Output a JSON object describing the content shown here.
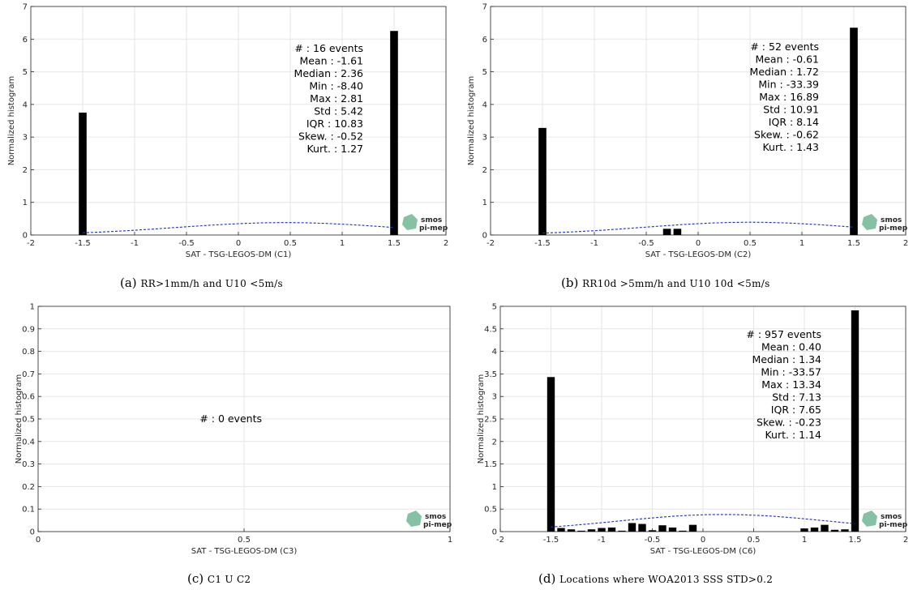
{
  "colors": {
    "bar": "#000000",
    "fit": "#1a2bd8",
    "grid": "#e6e6e6",
    "axis": "#262626",
    "logo": "#66b38c"
  },
  "logo": {
    "line1": "smos",
    "line2": "pi-mep",
    "icon": "smos-logo-icon"
  },
  "captions": [
    {
      "tag": "(a)",
      "text": "RR>1mm/h and U10 <5m/s"
    },
    {
      "tag": "(b)",
      "text": "RR10d >5mm/h and U10 10d <5m/s"
    },
    {
      "tag": "(c)",
      "text": "C1 U C2"
    },
    {
      "tag": "(d)",
      "text": "Locations where WOA2013 SSS STD>0.2"
    }
  ],
  "chart_data": [
    {
      "type": "bar",
      "xlabel": "SAT - TSG-LEGOS-DM (C1)",
      "ylabel": "Normalized histogram",
      "xlim": [
        -2,
        2
      ],
      "ylim": [
        0,
        7
      ],
      "xticks": [
        -2,
        -1.5,
        -1,
        -0.5,
        0,
        0.5,
        1,
        1.5,
        2
      ],
      "yticks": [
        0,
        1,
        2,
        3,
        4,
        5,
        6,
        7
      ],
      "grid": true,
      "bar_width": 0.075,
      "bars": [
        {
          "x": -1.5,
          "y": 3.75
        },
        {
          "x": 1.5,
          "y": 6.25
        }
      ],
      "fit": {
        "mean": 0.45,
        "std": 1.05,
        "range": [
          -1.5,
          1.5
        ]
      },
      "stats": [
        "#  : 16 events",
        "Mean : -1.61",
        "Median : 2.36",
        "Min : -8.40",
        "Max : 2.81",
        "Std : 5.42",
        "IQR : 10.83",
        "Skew. : -0.52",
        "Kurt. : 1.27"
      ]
    },
    {
      "type": "bar",
      "xlabel": "SAT - TSG-LEGOS-DM (C2)",
      "ylabel": "Normalized histogram",
      "xlim": [
        -2,
        2
      ],
      "ylim": [
        0,
        7
      ],
      "xticks": [
        -2,
        -1.5,
        -1,
        -0.5,
        0,
        0.5,
        1,
        1.5,
        2
      ],
      "yticks": [
        0,
        1,
        2,
        3,
        4,
        5,
        6,
        7
      ],
      "grid": true,
      "bar_width": 0.075,
      "bars": [
        {
          "x": -1.5,
          "y": 3.28
        },
        {
          "x": -0.3,
          "y": 0.19
        },
        {
          "x": -0.2,
          "y": 0.19
        },
        {
          "x": 1.5,
          "y": 6.35
        }
      ],
      "fit": {
        "mean": 0.5,
        "std": 1.02,
        "range": [
          -1.5,
          1.5
        ]
      },
      "stats": [
        "#  : 52 events",
        "Mean : -0.61",
        "Median : 1.72",
        "Min : -33.39",
        "Max : 16.89",
        "Std : 10.91",
        "IQR : 8.14",
        "Skew. : -0.62",
        "Kurt. : 1.43"
      ]
    },
    {
      "type": "bar",
      "xlabel": "SAT - TSG-LEGOS-DM (C3)",
      "ylabel": "Normalized histogram",
      "xlim": [
        0,
        1
      ],
      "ylim": [
        0,
        1
      ],
      "xticks": [
        0,
        0.5,
        1
      ],
      "yticks": [
        0,
        0.1,
        0.2,
        0.3,
        0.4,
        0.5,
        0.6,
        0.7,
        0.8,
        0.9,
        1
      ],
      "grid": true,
      "bar_width": 0,
      "bars": [],
      "stats": [
        "#  : 0 events"
      ]
    },
    {
      "type": "bar",
      "xlabel": "SAT - TSG-LEGOS-DM (C6)",
      "ylabel": "Normalized histogram",
      "xlim": [
        -2,
        2
      ],
      "ylim": [
        0,
        5
      ],
      "xticks": [
        -2,
        -1.5,
        -1,
        -0.5,
        0,
        0.5,
        1,
        1.5,
        2
      ],
      "yticks": [
        0,
        0.5,
        1,
        1.5,
        2,
        2.5,
        3,
        3.5,
        4,
        4.5,
        5
      ],
      "grid": true,
      "bar_width": 0.075,
      "bars": [
        {
          "x": -1.5,
          "y": 3.43
        },
        {
          "x": -1.4,
          "y": 0.08
        },
        {
          "x": -1.3,
          "y": 0.05
        },
        {
          "x": -1.2,
          "y": 0.02
        },
        {
          "x": -1.1,
          "y": 0.05
        },
        {
          "x": -1.0,
          "y": 0.08
        },
        {
          "x": -0.9,
          "y": 0.09
        },
        {
          "x": -0.8,
          "y": 0.02
        },
        {
          "x": -0.7,
          "y": 0.19
        },
        {
          "x": -0.6,
          "y": 0.17
        },
        {
          "x": -0.5,
          "y": 0.03
        },
        {
          "x": -0.4,
          "y": 0.14
        },
        {
          "x": -0.3,
          "y": 0.09
        },
        {
          "x": -0.2,
          "y": 0.02
        },
        {
          "x": -0.1,
          "y": 0.15
        },
        {
          "x": 1.0,
          "y": 0.07
        },
        {
          "x": 1.1,
          "y": 0.09
        },
        {
          "x": 1.2,
          "y": 0.15
        },
        {
          "x": 1.3,
          "y": 0.04
        },
        {
          "x": 1.4,
          "y": 0.05
        },
        {
          "x": 1.5,
          "y": 4.91
        }
      ],
      "fit": {
        "mean": 0.2,
        "std": 1.05,
        "range": [
          -1.5,
          1.5
        ]
      },
      "stats": [
        "#  : 957 events",
        "Mean : 0.40",
        "Median : 1.34",
        "Min : -33.57",
        "Max : 13.34",
        "Std : 7.13",
        "IQR : 7.65",
        "Skew. : -0.23",
        "Kurt. : 1.14"
      ]
    }
  ]
}
